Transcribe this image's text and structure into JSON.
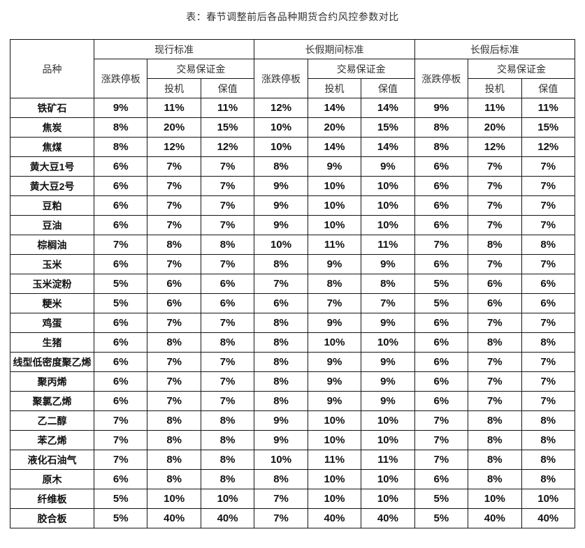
{
  "title": "表：春节调整前后各品种期货合约风控参数对比",
  "table": {
    "headers": {
      "variety": "品种",
      "groups": [
        "现行标准",
        "长假期间标准",
        "长假后标准"
      ],
      "price_limit": "涨跌停板",
      "margin": "交易保证金",
      "speculation": "投机",
      "hedging": "保值"
    },
    "rows": [
      {
        "name": "铁矿石",
        "values": [
          "9%",
          "11%",
          "11%",
          "12%",
          "14%",
          "14%",
          "9%",
          "11%",
          "11%"
        ]
      },
      {
        "name": "焦炭",
        "values": [
          "8%",
          "20%",
          "15%",
          "10%",
          "20%",
          "15%",
          "8%",
          "20%",
          "15%"
        ]
      },
      {
        "name": "焦煤",
        "values": [
          "8%",
          "12%",
          "12%",
          "10%",
          "14%",
          "14%",
          "8%",
          "12%",
          "12%"
        ]
      },
      {
        "name": "黄大豆1号",
        "values": [
          "6%",
          "7%",
          "7%",
          "8%",
          "9%",
          "9%",
          "6%",
          "7%",
          "7%"
        ]
      },
      {
        "name": "黄大豆2号",
        "values": [
          "6%",
          "7%",
          "7%",
          "9%",
          "10%",
          "10%",
          "6%",
          "7%",
          "7%"
        ]
      },
      {
        "name": "豆粕",
        "values": [
          "6%",
          "7%",
          "7%",
          "9%",
          "10%",
          "10%",
          "6%",
          "7%",
          "7%"
        ]
      },
      {
        "name": "豆油",
        "values": [
          "6%",
          "7%",
          "7%",
          "9%",
          "10%",
          "10%",
          "6%",
          "7%",
          "7%"
        ]
      },
      {
        "name": "棕榈油",
        "values": [
          "7%",
          "8%",
          "8%",
          "10%",
          "11%",
          "11%",
          "7%",
          "8%",
          "8%"
        ]
      },
      {
        "name": "玉米",
        "values": [
          "6%",
          "7%",
          "7%",
          "8%",
          "9%",
          "9%",
          "6%",
          "7%",
          "7%"
        ]
      },
      {
        "name": "玉米淀粉",
        "values": [
          "5%",
          "6%",
          "6%",
          "7%",
          "8%",
          "8%",
          "5%",
          "6%",
          "6%"
        ]
      },
      {
        "name": "粳米",
        "values": [
          "5%",
          "6%",
          "6%",
          "6%",
          "7%",
          "7%",
          "5%",
          "6%",
          "6%"
        ]
      },
      {
        "name": "鸡蛋",
        "values": [
          "6%",
          "7%",
          "7%",
          "8%",
          "9%",
          "9%",
          "6%",
          "7%",
          "7%"
        ]
      },
      {
        "name": "生猪",
        "values": [
          "6%",
          "8%",
          "8%",
          "8%",
          "10%",
          "10%",
          "6%",
          "8%",
          "8%"
        ]
      },
      {
        "name": "线型低密度聚乙烯",
        "values": [
          "6%",
          "7%",
          "7%",
          "8%",
          "9%",
          "9%",
          "6%",
          "7%",
          "7%"
        ]
      },
      {
        "name": "聚丙烯",
        "values": [
          "6%",
          "7%",
          "7%",
          "8%",
          "9%",
          "9%",
          "6%",
          "7%",
          "7%"
        ]
      },
      {
        "name": "聚氯乙烯",
        "values": [
          "6%",
          "7%",
          "7%",
          "8%",
          "9%",
          "9%",
          "6%",
          "7%",
          "7%"
        ]
      },
      {
        "name": "乙二醇",
        "values": [
          "7%",
          "8%",
          "8%",
          "9%",
          "10%",
          "10%",
          "7%",
          "8%",
          "8%"
        ]
      },
      {
        "name": "苯乙烯",
        "values": [
          "7%",
          "8%",
          "8%",
          "9%",
          "10%",
          "10%",
          "7%",
          "8%",
          "8%"
        ]
      },
      {
        "name": "液化石油气",
        "values": [
          "7%",
          "8%",
          "8%",
          "10%",
          "11%",
          "11%",
          "7%",
          "8%",
          "8%"
        ]
      },
      {
        "name": "原木",
        "values": [
          "6%",
          "8%",
          "8%",
          "8%",
          "10%",
          "10%",
          "6%",
          "8%",
          "8%"
        ]
      },
      {
        "name": "纤维板",
        "values": [
          "5%",
          "10%",
          "10%",
          "7%",
          "10%",
          "10%",
          "5%",
          "10%",
          "10%"
        ]
      },
      {
        "name": "胶合板",
        "values": [
          "5%",
          "40%",
          "40%",
          "7%",
          "40%",
          "40%",
          "5%",
          "40%",
          "40%"
        ]
      }
    ]
  }
}
